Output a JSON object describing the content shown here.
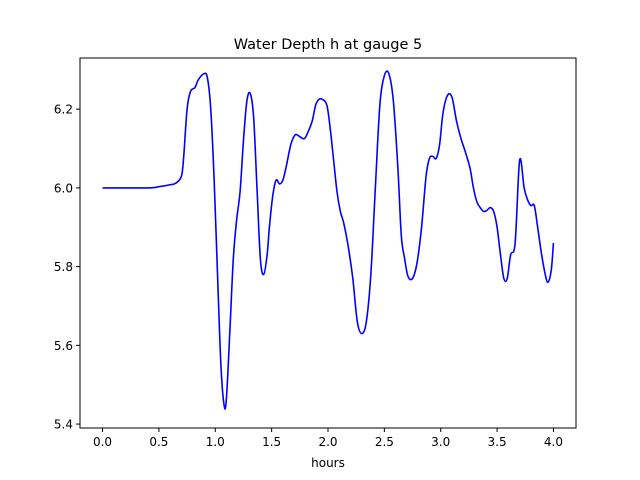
{
  "chart_data": {
    "type": "line",
    "title": "Water Depth h at gauge 5",
    "xlabel": "hours",
    "ylabel": "",
    "xlim": [
      -0.2,
      4.2
    ],
    "ylim": [
      5.39,
      6.33
    ],
    "xticks": [
      0.0,
      0.5,
      1.0,
      1.5,
      2.0,
      2.5,
      3.0,
      3.5,
      4.0
    ],
    "xtick_labels": [
      "0.0",
      "0.5",
      "1.0",
      "1.5",
      "2.0",
      "2.5",
      "3.0",
      "3.5",
      "4.0"
    ],
    "yticks": [
      5.4,
      5.6,
      5.8,
      6.0,
      6.2
    ],
    "ytick_labels": [
      "5.4",
      "5.6",
      "5.8",
      "6.0",
      "6.2"
    ],
    "grid": false,
    "series": [
      {
        "color": "#0000ff",
        "x": [
          0.0,
          0.4,
          0.5,
          0.6,
          0.65,
          0.7,
          0.72,
          0.75,
          0.78,
          0.82,
          0.85,
          0.9,
          0.93,
          0.96,
          0.99,
          1.02,
          1.05,
          1.08,
          1.1,
          1.13,
          1.16,
          1.19,
          1.22,
          1.25,
          1.28,
          1.31,
          1.34,
          1.37,
          1.4,
          1.43,
          1.46,
          1.48,
          1.51,
          1.54,
          1.57,
          1.6,
          1.63,
          1.67,
          1.71,
          1.75,
          1.79,
          1.82,
          1.86,
          1.89,
          1.92,
          1.95,
          1.99,
          2.02,
          2.05,
          2.08,
          2.11,
          2.14,
          2.18,
          2.22,
          2.26,
          2.3,
          2.34,
          2.38,
          2.42,
          2.46,
          2.5,
          2.54,
          2.58,
          2.62,
          2.65,
          2.68,
          2.71,
          2.75,
          2.79,
          2.83,
          2.87,
          2.9,
          2.93,
          2.96,
          2.99,
          3.02,
          3.06,
          3.1,
          3.14,
          3.18,
          3.22,
          3.26,
          3.29,
          3.32,
          3.35,
          3.38,
          3.41,
          3.44,
          3.47,
          3.5,
          3.53,
          3.56,
          3.59,
          3.62,
          3.66,
          3.7,
          3.74,
          3.77,
          3.8,
          3.83,
          3.86,
          3.89,
          3.92,
          3.95,
          3.98,
          4.0
        ],
        "y": [
          6.0,
          6.0,
          6.003,
          6.008,
          6.012,
          6.03,
          6.08,
          6.2,
          6.245,
          6.255,
          6.275,
          6.29,
          6.28,
          6.2,
          6.02,
          5.78,
          5.55,
          5.445,
          5.47,
          5.64,
          5.82,
          5.92,
          5.99,
          6.12,
          6.22,
          6.24,
          6.18,
          6.0,
          5.82,
          5.78,
          5.83,
          5.9,
          5.98,
          6.02,
          6.01,
          6.02,
          6.055,
          6.11,
          6.135,
          6.13,
          6.125,
          6.14,
          6.17,
          6.21,
          6.225,
          6.225,
          6.21,
          6.15,
          6.07,
          5.99,
          5.94,
          5.91,
          5.85,
          5.77,
          5.66,
          5.63,
          5.66,
          5.78,
          6.0,
          6.21,
          6.285,
          6.29,
          6.22,
          6.05,
          5.88,
          5.82,
          5.775,
          5.77,
          5.81,
          5.9,
          6.03,
          6.075,
          6.08,
          6.075,
          6.11,
          6.19,
          6.235,
          6.23,
          6.17,
          6.125,
          6.09,
          6.05,
          6.0,
          5.965,
          5.95,
          5.94,
          5.943,
          5.95,
          5.94,
          5.9,
          5.83,
          5.77,
          5.77,
          5.83,
          5.86,
          6.07,
          6.0,
          5.97,
          5.955,
          5.955,
          5.9,
          5.84,
          5.79,
          5.76,
          5.79,
          5.86
        ]
      }
    ]
  }
}
